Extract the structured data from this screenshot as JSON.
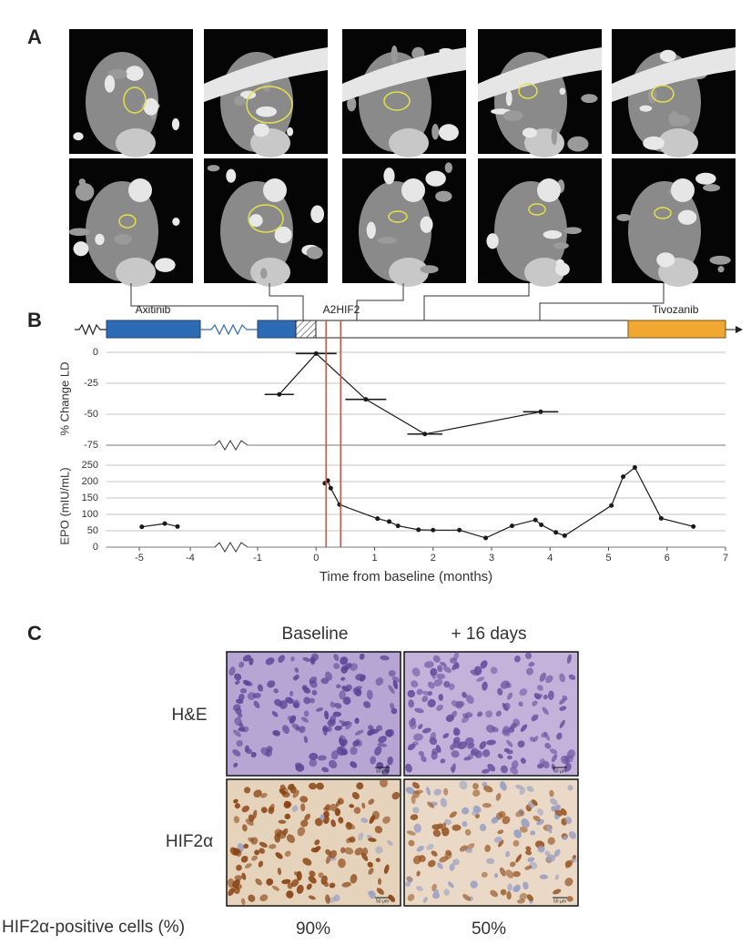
{
  "panel_labels": [
    "A",
    "B",
    "C"
  ],
  "timeline": {
    "labels": [
      "Axitinib",
      "A2HIF2",
      "Tivozanib"
    ],
    "dose_lines": [
      0.17,
      0.42
    ]
  },
  "chart_data": [
    {
      "type": "line",
      "y_label": "% Change LD",
      "x": [
        -0.63,
        0,
        0.85,
        1.86,
        3.84
      ],
      "values": [
        -34,
        -1,
        -38,
        -66,
        -48
      ],
      "xerr": [
        0.25,
        0.35,
        0.35,
        0.3,
        0.3
      ],
      "xlim": [
        -5.65,
        7
      ],
      "x_break": [
        -4,
        -1
      ],
      "ylim": [
        -75,
        0
      ],
      "yticks": [
        -75,
        -50,
        -25,
        0
      ],
      "grid": true,
      "color": "#1a1a1a"
    },
    {
      "type": "line",
      "y_label": "EPO (mIU/mL)",
      "x_label": "Time from baseline (months)",
      "x": [
        -4.95,
        -4.5,
        -4.25,
        null,
        0.15,
        0.2,
        0.25,
        0.4,
        1.05,
        1.25,
        1.4,
        1.75,
        2.0,
        2.45,
        2.9,
        3.35,
        3.75,
        3.85,
        4.1,
        4.25,
        5.05,
        5.25,
        5.45,
        5.9,
        6.45
      ],
      "values": [
        62,
        72,
        63,
        null,
        195,
        203,
        180,
        130,
        87,
        78,
        65,
        53,
        52,
        52,
        28,
        65,
        83,
        68,
        45,
        35,
        127,
        215,
        243,
        88,
        63
      ],
      "xlim": [
        -5.65,
        7
      ],
      "x_break": [
        -4,
        -1
      ],
      "xticks": [
        -5,
        -4,
        -1,
        0,
        1,
        2,
        3,
        4,
        5,
        6,
        7
      ],
      "ylim": [
        0,
        250
      ],
      "yticks": [
        0,
        50,
        100,
        150,
        200,
        250
      ],
      "grid": true,
      "color": "#1a1a1a"
    }
  ],
  "panel_c": {
    "columns": [
      "Baseline",
      "+ 16 days"
    ],
    "rows": [
      "H&E",
      "HIF2α"
    ],
    "scale_bar": "50 μm",
    "quantification": {
      "label": "HIF2α-positive cells (%)",
      "values": [
        "90%",
        "50%"
      ]
    }
  }
}
